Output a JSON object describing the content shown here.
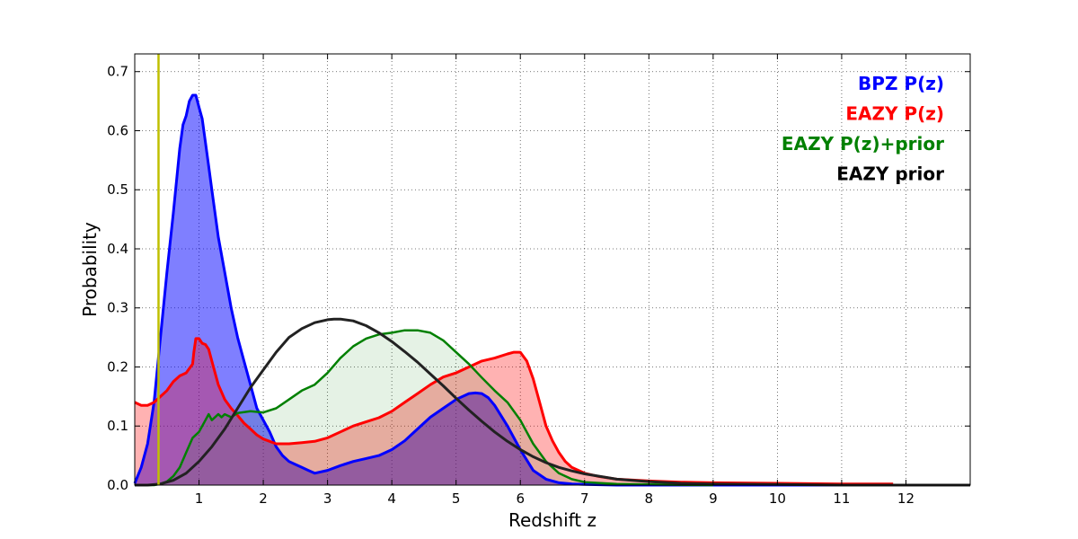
{
  "chart_data": {
    "type": "area",
    "xlabel": "Redshift z",
    "ylabel": "Probability",
    "xlim": [
      0,
      13
    ],
    "ylim": [
      0,
      0.73
    ],
    "x_ticks": [
      1,
      2,
      3,
      4,
      5,
      6,
      7,
      8,
      9,
      10,
      11,
      12
    ],
    "y_ticks": [
      0.0,
      0.1,
      0.2,
      0.3,
      0.4,
      0.5,
      0.6,
      0.7
    ],
    "y_tick_labels": [
      "0.0",
      "0.1",
      "0.2",
      "0.3",
      "0.4",
      "0.5",
      "0.6",
      "0.7"
    ],
    "grid": true,
    "legend_position": "top-right",
    "vertical_line": {
      "x": 0.37,
      "color": "#bfbf00"
    },
    "series": [
      {
        "name": "BPZ P(z)",
        "color": "#0000ff",
        "fill": "#0000ff",
        "fill_opacity": 0.5,
        "x": [
          0,
          0.1,
          0.2,
          0.3,
          0.4,
          0.5,
          0.6,
          0.7,
          0.75,
          0.8,
          0.85,
          0.9,
          0.95,
          1.0,
          1.05,
          1.1,
          1.15,
          1.2,
          1.3,
          1.4,
          1.5,
          1.6,
          1.7,
          1.8,
          1.9,
          2.0,
          2.1,
          2.2,
          2.3,
          2.4,
          2.5,
          2.6,
          2.7,
          2.8,
          3.0,
          3.2,
          3.4,
          3.6,
          3.8,
          4.0,
          4.2,
          4.4,
          4.6,
          4.8,
          5.0,
          5.2,
          5.3,
          5.4,
          5.5,
          5.6,
          5.8,
          6.0,
          6.2,
          6.4,
          6.6,
          6.8,
          7.0,
          7.5,
          8.0,
          9.0,
          10.0,
          11.0,
          12.0,
          13.0
        ],
        "y": [
          0.003,
          0.03,
          0.07,
          0.14,
          0.25,
          0.36,
          0.46,
          0.57,
          0.61,
          0.625,
          0.65,
          0.66,
          0.66,
          0.64,
          0.62,
          0.58,
          0.54,
          0.5,
          0.42,
          0.36,
          0.3,
          0.25,
          0.21,
          0.17,
          0.13,
          0.11,
          0.09,
          0.065,
          0.05,
          0.04,
          0.035,
          0.03,
          0.025,
          0.02,
          0.025,
          0.033,
          0.04,
          0.045,
          0.05,
          0.06,
          0.075,
          0.095,
          0.115,
          0.13,
          0.145,
          0.155,
          0.156,
          0.155,
          0.148,
          0.135,
          0.1,
          0.06,
          0.025,
          0.01,
          0.004,
          0.002,
          0.001,
          0.0,
          0.0,
          0.0,
          0.0,
          0.0,
          0.0,
          0.0
        ]
      },
      {
        "name": "EAZY P(z)",
        "color": "#ff0000",
        "fill": "#ff0000",
        "fill_opacity": 0.3,
        "x": [
          0,
          0.1,
          0.2,
          0.3,
          0.4,
          0.5,
          0.6,
          0.7,
          0.8,
          0.9,
          0.92,
          0.95,
          1.0,
          1.05,
          1.1,
          1.15,
          1.2,
          1.3,
          1.4,
          1.5,
          1.6,
          1.7,
          1.8,
          1.9,
          2.0,
          2.2,
          2.4,
          2.6,
          2.8,
          3.0,
          3.2,
          3.4,
          3.6,
          3.8,
          4.0,
          4.2,
          4.4,
          4.6,
          4.8,
          5.0,
          5.2,
          5.4,
          5.6,
          5.8,
          5.9,
          6.0,
          6.1,
          6.2,
          6.3,
          6.4,
          6.5,
          6.6,
          6.7,
          6.8,
          7.0,
          7.2,
          7.5,
          8.0,
          8.5,
          9.0,
          10.0,
          11.0,
          11.8
        ],
        "y": [
          0.14,
          0.135,
          0.135,
          0.14,
          0.15,
          0.16,
          0.175,
          0.185,
          0.19,
          0.205,
          0.225,
          0.248,
          0.248,
          0.24,
          0.238,
          0.23,
          0.21,
          0.17,
          0.145,
          0.13,
          0.118,
          0.105,
          0.095,
          0.085,
          0.078,
          0.07,
          0.07,
          0.072,
          0.074,
          0.08,
          0.09,
          0.1,
          0.107,
          0.114,
          0.125,
          0.14,
          0.155,
          0.17,
          0.183,
          0.19,
          0.2,
          0.21,
          0.215,
          0.222,
          0.225,
          0.225,
          0.21,
          0.18,
          0.14,
          0.1,
          0.075,
          0.055,
          0.04,
          0.03,
          0.02,
          0.015,
          0.01,
          0.007,
          0.005,
          0.004,
          0.003,
          0.002,
          0.002
        ]
      },
      {
        "name": "EAZY P(z)+prior",
        "color": "#008000",
        "fill": "#008000",
        "fill_opacity": 0.1,
        "x": [
          0,
          0.3,
          0.4,
          0.5,
          0.6,
          0.7,
          0.8,
          0.9,
          1.0,
          1.1,
          1.15,
          1.2,
          1.3,
          1.35,
          1.4,
          1.5,
          1.6,
          1.8,
          2.0,
          2.2,
          2.4,
          2.6,
          2.8,
          3.0,
          3.2,
          3.4,
          3.6,
          3.8,
          4.0,
          4.2,
          4.4,
          4.6,
          4.8,
          5.0,
          5.2,
          5.4,
          5.6,
          5.8,
          6.0,
          6.2,
          6.4,
          6.6,
          6.8,
          7.0,
          7.5,
          8.0,
          9.0
        ],
        "y": [
          0.0,
          0.0,
          0.002,
          0.006,
          0.015,
          0.03,
          0.055,
          0.08,
          0.09,
          0.11,
          0.12,
          0.11,
          0.12,
          0.115,
          0.12,
          0.115,
          0.122,
          0.125,
          0.123,
          0.13,
          0.145,
          0.16,
          0.17,
          0.19,
          0.215,
          0.235,
          0.248,
          0.255,
          0.258,
          0.262,
          0.262,
          0.258,
          0.245,
          0.225,
          0.205,
          0.182,
          0.16,
          0.14,
          0.11,
          0.07,
          0.04,
          0.02,
          0.01,
          0.005,
          0.002,
          0.001,
          0.0
        ]
      },
      {
        "name": "EAZY prior",
        "color": "#222222",
        "fill": "none",
        "fill_opacity": 0,
        "x": [
          0,
          0.2,
          0.4,
          0.6,
          0.8,
          1.0,
          1.2,
          1.4,
          1.6,
          1.8,
          2.0,
          2.2,
          2.4,
          2.6,
          2.8,
          3.0,
          3.1,
          3.2,
          3.4,
          3.6,
          3.8,
          4.0,
          4.2,
          4.4,
          4.6,
          4.8,
          5.0,
          5.2,
          5.4,
          5.6,
          5.8,
          6.0,
          6.2,
          6.4,
          6.6,
          6.8,
          7.0,
          7.5,
          8.0,
          8.5,
          9.0,
          10.0,
          11.0,
          12.0,
          13.0
        ],
        "y": [
          0.0,
          0.0,
          0.002,
          0.008,
          0.02,
          0.04,
          0.065,
          0.095,
          0.13,
          0.165,
          0.195,
          0.225,
          0.25,
          0.265,
          0.275,
          0.28,
          0.281,
          0.281,
          0.278,
          0.27,
          0.258,
          0.243,
          0.226,
          0.208,
          0.188,
          0.168,
          0.147,
          0.127,
          0.108,
          0.09,
          0.074,
          0.06,
          0.048,
          0.038,
          0.03,
          0.024,
          0.019,
          0.01,
          0.006,
          0.003,
          0.002,
          0.001,
          0.0,
          0.0,
          0.0
        ]
      }
    ]
  }
}
